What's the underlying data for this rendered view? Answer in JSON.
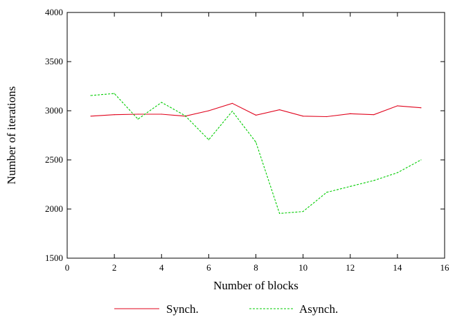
{
  "chart_data": {
    "type": "line",
    "xlabel": "Number of blocks",
    "ylabel": "Number of iterations",
    "xlim": [
      0,
      16
    ],
    "ylim": [
      1500,
      4000
    ],
    "xticks": [
      0,
      2,
      4,
      6,
      8,
      10,
      12,
      14,
      16
    ],
    "yticks": [
      1500,
      2000,
      2500,
      3000,
      3500,
      4000
    ],
    "grid": false,
    "legend_position": "bottom",
    "series": [
      {
        "name": "Synch.",
        "color": "#e0001a",
        "style": "solid",
        "x": [
          1,
          2,
          3,
          4,
          5,
          6,
          7,
          8,
          9,
          10,
          11,
          12,
          13,
          14,
          15
        ],
        "y": [
          2945,
          2960,
          2965,
          2965,
          2945,
          3000,
          3075,
          2955,
          3010,
          2945,
          2940,
          2970,
          2960,
          3050,
          3030
        ]
      },
      {
        "name": "Asynch.",
        "color": "#00cc00",
        "style": "dashed",
        "x": [
          1,
          2,
          3,
          4,
          5,
          6,
          7,
          8,
          9,
          10,
          11,
          12,
          13,
          14,
          15
        ],
        "y": [
          3155,
          3175,
          2915,
          3085,
          2950,
          2705,
          2995,
          2680,
          1955,
          1975,
          2170,
          2230,
          2290,
          2370,
          2500
        ]
      }
    ]
  }
}
